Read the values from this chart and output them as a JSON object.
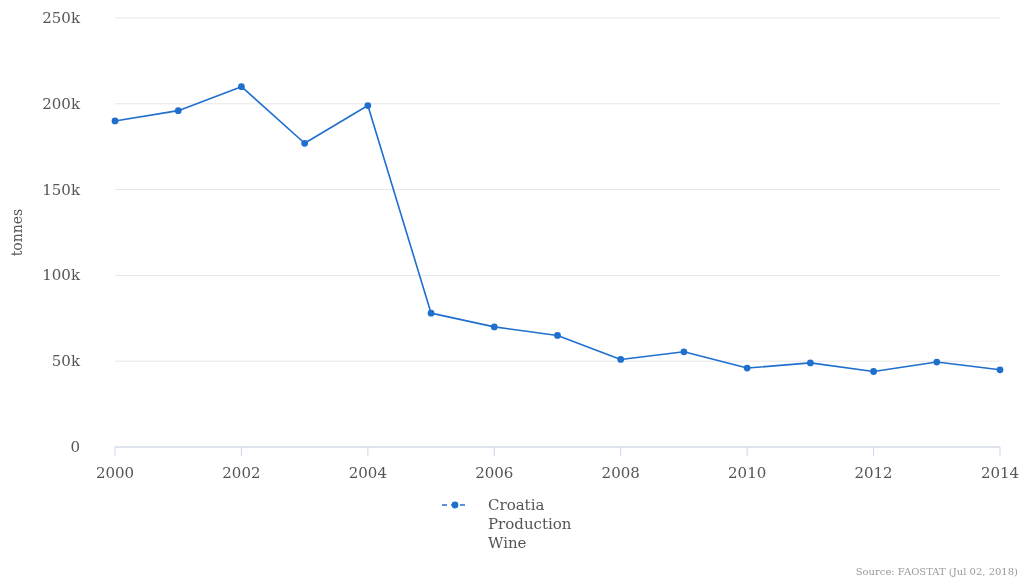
{
  "chart_data": {
    "type": "line",
    "ylabel": "tonnes",
    "x": [
      2000,
      2001,
      2002,
      2003,
      2004,
      2005,
      2006,
      2007,
      2008,
      2009,
      2010,
      2011,
      2012,
      2013,
      2014
    ],
    "xlim": [
      2000,
      2014
    ],
    "xticks": [
      2000,
      2002,
      2004,
      2006,
      2008,
      2010,
      2012,
      2014
    ],
    "ylim": [
      0,
      250000
    ],
    "yticks": [
      {
        "value": 0,
        "label": "0"
      },
      {
        "value": 50000,
        "label": "50k"
      },
      {
        "value": 100000,
        "label": "100k"
      },
      {
        "value": 150000,
        "label": "150k"
      },
      {
        "value": 200000,
        "label": "200k"
      },
      {
        "value": 250000,
        "label": "250k"
      }
    ],
    "series": [
      {
        "name": "Croatia Production Wine",
        "color": "#1f6fcf",
        "values": [
          190000,
          196000,
          210000,
          177000,
          199000,
          78000,
          70000,
          65000,
          51000,
          55500,
          46000,
          49000,
          44000,
          49500,
          45000
        ]
      }
    ],
    "grid": "y",
    "legend": "bottom",
    "marker": "circle",
    "line_style": "solid",
    "annotations": [
      "Source: FAOSTAT (Jul 02, 2018)"
    ]
  }
}
